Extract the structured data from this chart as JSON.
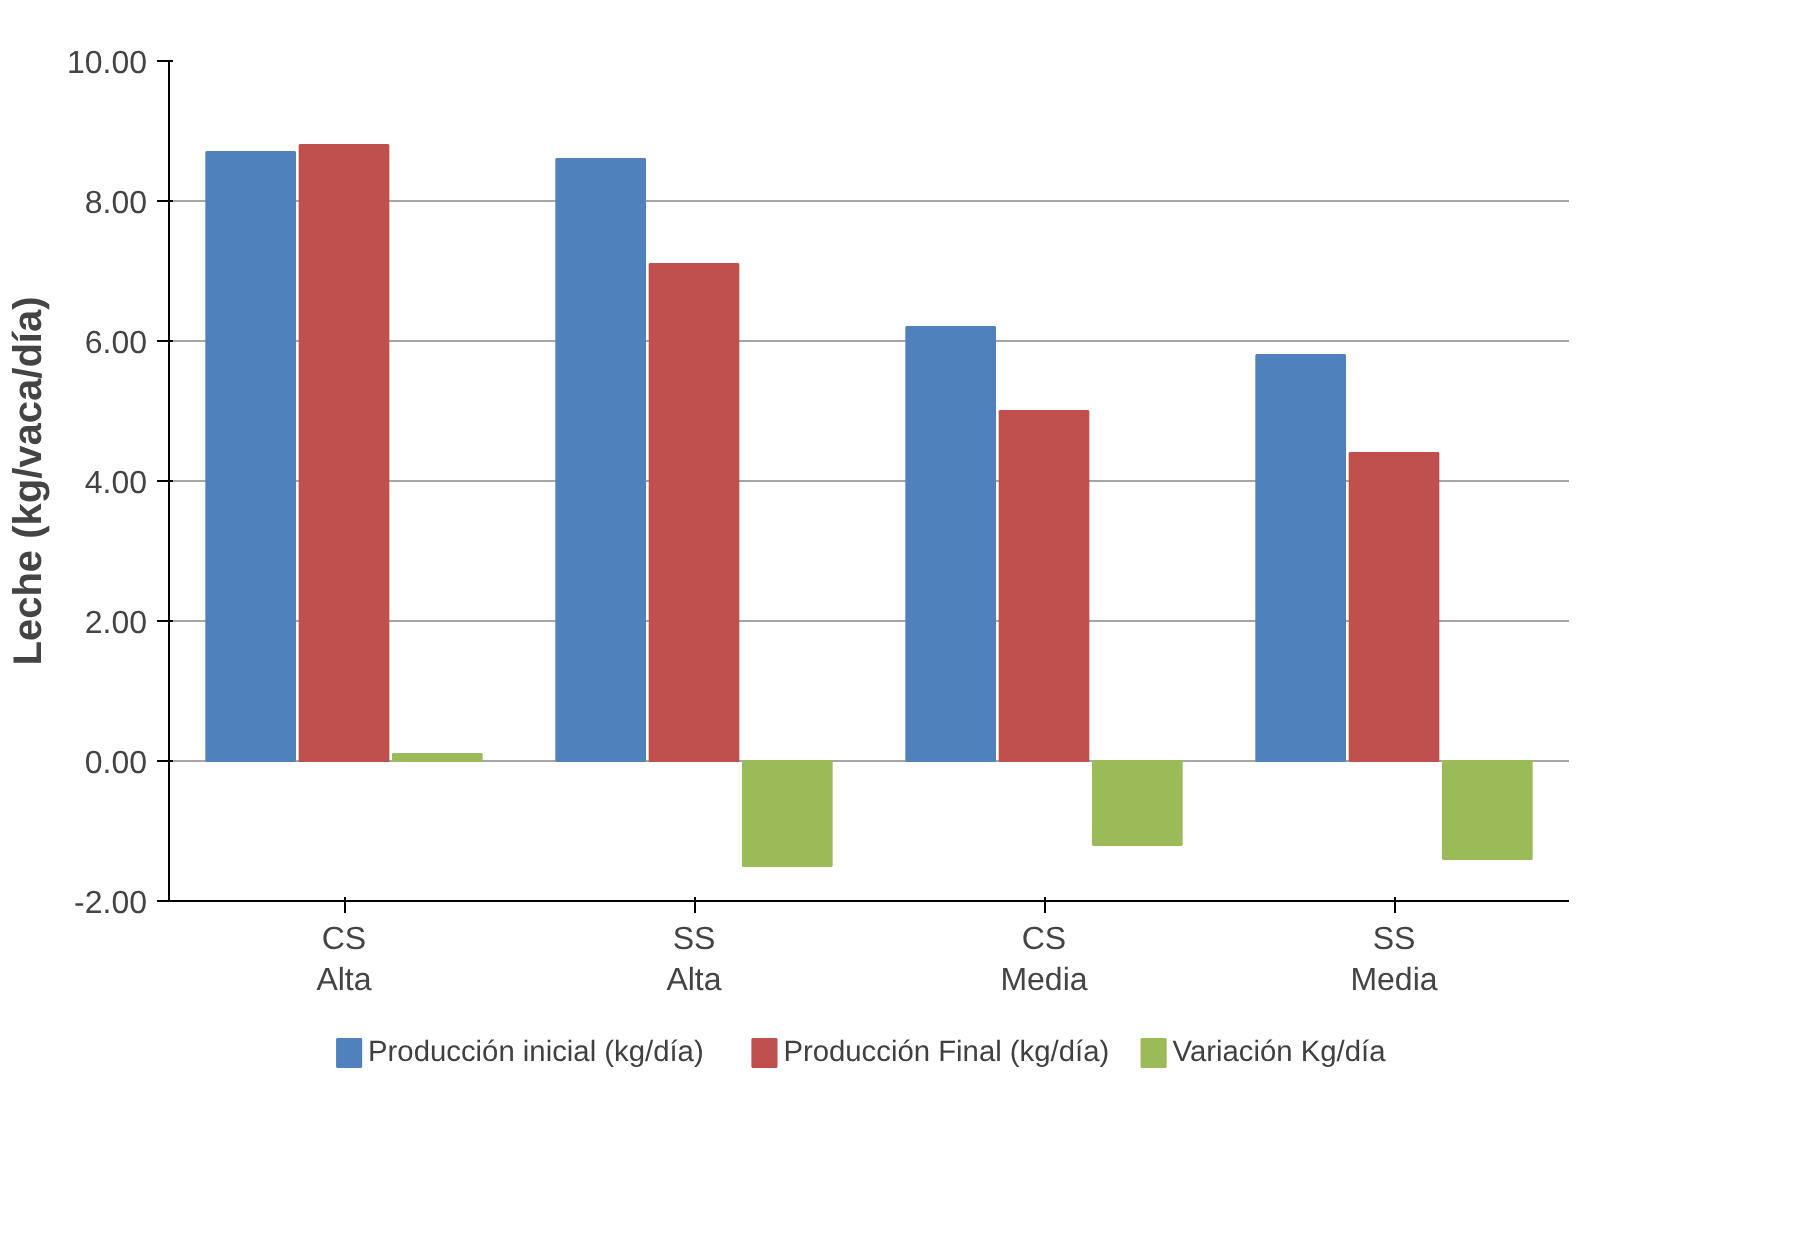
{
  "chart_data": {
    "type": "bar",
    "ylabel": "Leche (kg/vaca/día)",
    "categories": [
      "CS\nAlta",
      "SS\nAlta",
      "CS\nMedia",
      "SS\nMedia"
    ],
    "series": [
      {
        "name": "Producción inicial (kg/día)",
        "color": "#4f81bd",
        "values": [
          8.7,
          8.6,
          6.2,
          5.8
        ]
      },
      {
        "name": "Producción Final (kg/día)",
        "color": "#c0504d",
        "values": [
          8.8,
          7.1,
          5.0,
          4.4
        ]
      },
      {
        "name": "Variación Kg/día",
        "color": "#9bbb59",
        "values": [
          0.1,
          -1.5,
          -1.2,
          -1.4
        ]
      }
    ],
    "ylim": [
      -2,
      10
    ],
    "yticks": [
      {
        "value": -2,
        "label": "-2.00"
      },
      {
        "value": 0,
        "label": "0.00"
      },
      {
        "value": 2,
        "label": "2.00"
      },
      {
        "value": 4,
        "label": "4.00"
      },
      {
        "value": 6,
        "label": "6.00"
      },
      {
        "value": 8,
        "label": "8.00"
      },
      {
        "value": 10,
        "label": "10.00"
      }
    ],
    "grid": "y",
    "legend": "bottom"
  }
}
